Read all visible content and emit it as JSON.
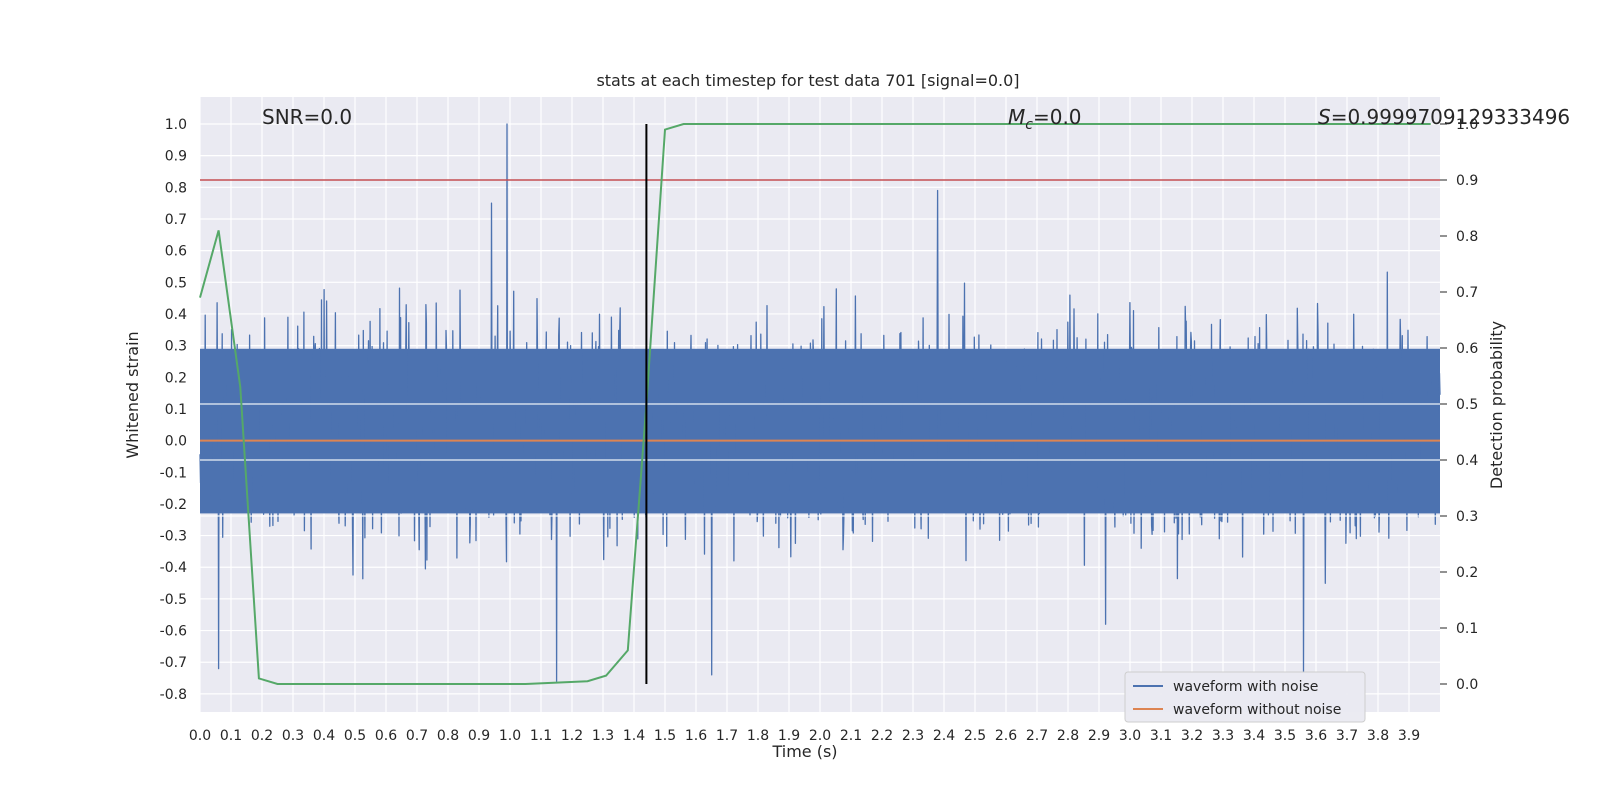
{
  "chart_data": {
    "type": "line",
    "title": "stats at each timestep for test data 701 [signal=0.0]",
    "xlabel": "Time (s)",
    "ylabel": "Whitened strain",
    "y2label": "Detection probability",
    "xlim": [
      0.0,
      4.0
    ],
    "ylim": [
      -0.85,
      1.09
    ],
    "y2lim": [
      -0.05,
      1.09
    ],
    "xticks": [
      "0.0",
      "0.1",
      "0.2",
      "0.3",
      "0.4",
      "0.5",
      "0.6",
      "0.7",
      "0.8",
      "0.9",
      "1.0",
      "1.1",
      "1.2",
      "1.3",
      "1.4",
      "1.5",
      "1.6",
      "1.7",
      "1.8",
      "1.9",
      "2.0",
      "2.1",
      "2.2",
      "2.3",
      "2.4",
      "2.5",
      "2.6",
      "2.7",
      "2.8",
      "2.9",
      "3.0",
      "3.1",
      "3.2",
      "3.3",
      "3.4",
      "3.5",
      "3.6",
      "3.7",
      "3.8",
      "3.9"
    ],
    "yticks": [
      "1.0",
      "0.9",
      "0.8",
      "0.7",
      "0.6",
      "0.5",
      "0.4",
      "0.3",
      "0.2",
      "0.1",
      "0.0",
      "-0.1",
      "-0.2",
      "-0.3",
      "-0.4",
      "-0.5",
      "-0.6",
      "-0.7",
      "-0.8"
    ],
    "y2ticks": [
      "1.0",
      "0.9",
      "0.8",
      "0.7",
      "0.6",
      "0.5",
      "0.4",
      "0.3",
      "0.2",
      "0.1",
      "0.0"
    ],
    "grid": true,
    "legend_position": "lower right",
    "annotations": {
      "snr": "SNR=0.0",
      "mc_symbol": "M",
      "mc_subscript": "c",
      "mc_value": "=0.0",
      "s_symbol": "S",
      "s_value": "=0.9999709129333496"
    },
    "series": [
      {
        "name": "waveform with noise",
        "color": "#4c72b0",
        "kind": "noise",
        "band": [
          -0.23,
          0.29
        ],
        "notable_spikes": [
          [
            0.99,
            1.0
          ],
          [
            0.94,
            0.75
          ],
          [
            2.38,
            0.79
          ],
          [
            0.06,
            -0.72
          ],
          [
            1.15,
            -0.76
          ],
          [
            1.65,
            -0.74
          ],
          [
            3.56,
            -0.73
          ],
          [
            2.42,
            0.02
          ]
        ]
      },
      {
        "name": "waveform without noise",
        "color": "#dd8452",
        "kind": "flat",
        "value": 0.0
      },
      {
        "name": "",
        "axis": "right",
        "color": "#55a868",
        "x": [
          0.0,
          0.06,
          0.13,
          0.19,
          0.25,
          0.45,
          0.65,
          0.85,
          1.05,
          1.25,
          1.31,
          1.38,
          1.44,
          1.5,
          1.56,
          1.6,
          2.0,
          3.0,
          3.97
        ],
        "values": [
          0.69,
          0.81,
          0.53,
          0.01,
          0.0,
          0.0,
          0.0,
          0.0,
          0.0,
          0.005,
          0.015,
          0.06,
          0.5,
          0.99,
          1.0,
          1.0,
          1.0,
          1.0,
          1.0
        ]
      }
    ],
    "threshold": {
      "axis": "right",
      "value": 0.9,
      "color": "#c44e52"
    },
    "marker": {
      "x": 1.44,
      "color": "#000000"
    }
  }
}
